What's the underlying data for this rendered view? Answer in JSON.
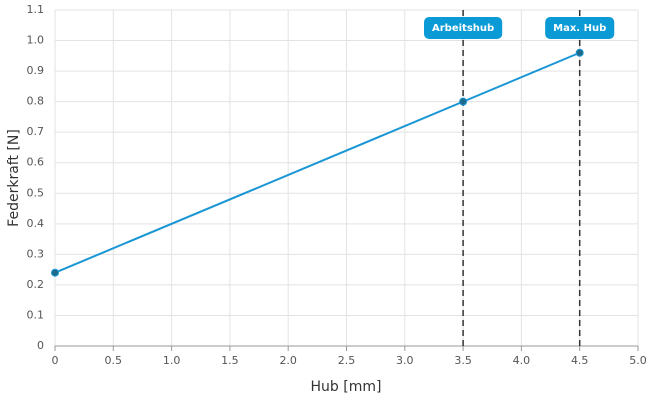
{
  "chart_data": {
    "type": "line",
    "x_label": "Hub [mm]",
    "y_label": "Federkraft [N]",
    "x": [
      0,
      3.5,
      4.5
    ],
    "values": [
      0.24,
      0.8,
      0.96
    ],
    "color": "#1a96d4",
    "marker_color": "#1d6a8a",
    "xlim": [
      0,
      5
    ],
    "xticks": [
      0,
      0.5,
      {
        "value": 1,
        "label": "1.0"
      },
      1.5,
      {
        "value": 2,
        "label": "2.0"
      },
      2.5,
      {
        "value": 3,
        "label": "3.0"
      },
      3.5,
      {
        "value": 4,
        "label": "4.0"
      },
      4.5,
      {
        "value": 5,
        "label": "5.0"
      }
    ],
    "ylim": [
      0,
      1.1
    ],
    "yticks": [
      0,
      0.1,
      0.2,
      0.3,
      0.4,
      0.5,
      0.6,
      0.7,
      0.8,
      0.9,
      {
        "value": 1,
        "label": "1.0"
      },
      1.1
    ],
    "grid": true,
    "annotations": [
      {
        "x": 3.5,
        "label": "Arbeitshub"
      },
      {
        "x": 4.5,
        "label": "Max. Hub"
      }
    ],
    "annotation_color": "#0a9ad6"
  }
}
